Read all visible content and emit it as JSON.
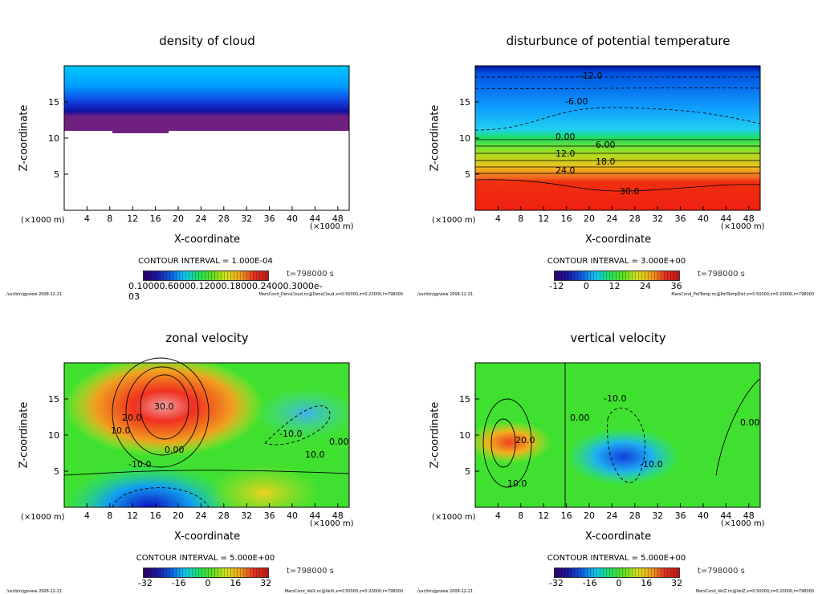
{
  "common": {
    "ylabel": "Z-coordinate",
    "xlabel": "X-coordinate",
    "unit_left": "(×1000 m)",
    "unit_right": "(×1000 m)",
    "time": "t=798000 s",
    "footer_left": "/usr/bin/gpview  2008-12-21",
    "x_ticks": [
      4,
      8,
      12,
      16,
      20,
      24,
      28,
      32,
      36,
      40,
      44,
      48
    ],
    "y_ticks": [
      5,
      10,
      15
    ],
    "xlim": [
      0,
      50
    ],
    "ylim": [
      0,
      20
    ]
  },
  "chart_data": [
    {
      "type": "heatmap",
      "title": "density of cloud",
      "contour_interval": "CONTOUR INTERVAL = 1.000E-04",
      "colorbar_labels": [
        "0.10000E-03",
        "0.60000E-03",
        "0.12000E-03",
        "0.18000E-03",
        "0.24000E-03",
        "0.30000E-03"
      ],
      "colorbar_text": "0.10000.60000.12000.18000.24000.3000e-03",
      "footer_right": "MarsCond_DensCloud.nc@DensCloud,x=0:50000,z=0:20000,t=798000",
      "contour_labels": []
    },
    {
      "type": "heatmap",
      "title": "disturbunce of potential temperature",
      "contour_interval": "CONTOUR INTERVAL = 3.000E+00",
      "colorbar_labels": [
        "-12",
        "0",
        "12",
        "24",
        "36"
      ],
      "footer_right": "MarsCond_PotTemp.nc@PotTempDist,x=0:50000,z=0:20000,t=798000",
      "contour_labels": [
        "-12.0",
        "-6.00",
        "0.00",
        "6.00",
        "12.0",
        "18.0",
        "24.0",
        "30.0"
      ]
    },
    {
      "type": "heatmap",
      "title": "zonal velocity",
      "contour_interval": "CONTOUR INTERVAL = 5.000E+00",
      "colorbar_labels": [
        "-32",
        "-16",
        "0",
        "16",
        "32"
      ],
      "footer_right": "MarsCond_VelX.nc@VelX,x=0:50000,z=0:20000,t=798000",
      "contour_labels": [
        "30.0",
        "20.0",
        "10.0",
        "0.00",
        "-10.0",
        "-10.0",
        "10.0",
        "0.00"
      ]
    },
    {
      "type": "heatmap",
      "title": "vertical velocity",
      "contour_interval": "CONTOUR INTERVAL = 5.000E+00",
      "colorbar_labels": [
        "-32",
        "-16",
        "0",
        "16",
        "32"
      ],
      "footer_right": "MarsCond_VelZ.nc@VelZ,x=0:50000,z=0:20000,t=798000",
      "contour_labels": [
        "20.0",
        "10.0",
        "0.00",
        "-10.0",
        "-10.0",
        "0.00"
      ]
    }
  ]
}
